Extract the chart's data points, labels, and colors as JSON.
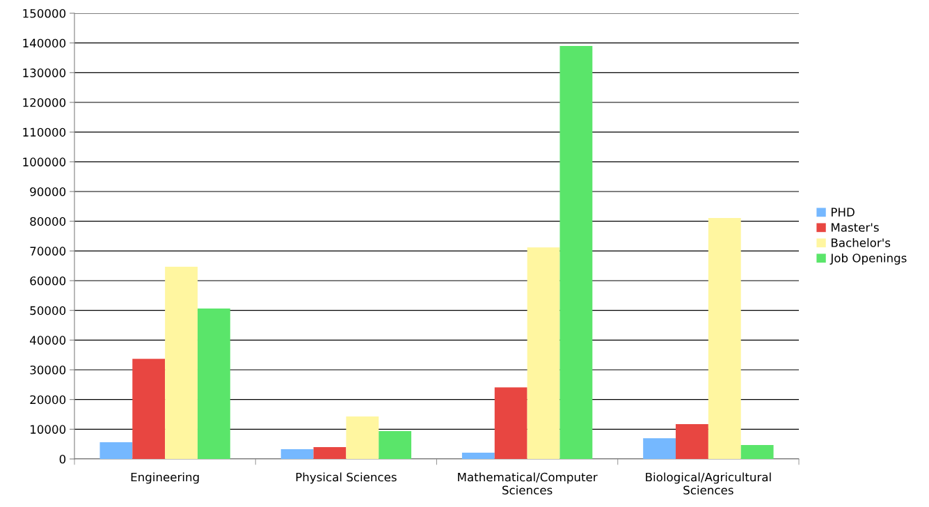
{
  "chart_data": {
    "type": "bar",
    "categories": [
      "Engineering",
      "Physical Sciences",
      "Mathematical/Computer Sciences",
      "Biological/Agricultural Sciences"
    ],
    "series": [
      {
        "name": "PHD",
        "color": "#75b8ff",
        "values": [
          5600,
          3300,
          2100,
          7000
        ]
      },
      {
        "name": "Master's",
        "color": "#e84641",
        "values": [
          33700,
          4000,
          24100,
          11700
        ]
      },
      {
        "name": "Bachelor's",
        "color": "#fff6a0",
        "values": [
          64700,
          14300,
          71200,
          81100
        ]
      },
      {
        "name": "Job Openings",
        "color": "#5ae56a",
        "values": [
          50600,
          9400,
          139000,
          4700
        ]
      }
    ],
    "ylim": [
      0,
      150000
    ],
    "yticks": [
      0,
      10000,
      20000,
      30000,
      40000,
      50000,
      60000,
      70000,
      80000,
      90000,
      100000,
      110000,
      120000,
      130000,
      140000,
      150000
    ],
    "grid": "y",
    "legend": "right"
  }
}
